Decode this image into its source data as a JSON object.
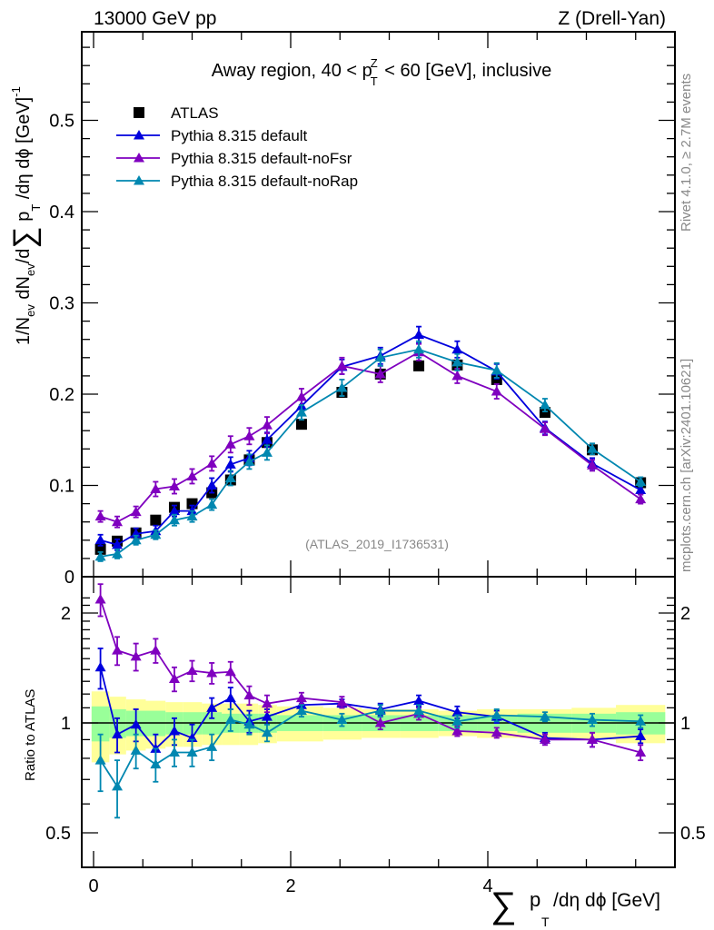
{
  "header": {
    "left": "13000 GeV pp",
    "right": "Z (Drell-Yan)"
  },
  "side_text": {
    "rivet": "Rivet 4.1.0, ≥ 2.7M events",
    "mcplots": "mcplots.cern.ch [arXiv:2401.10621]"
  },
  "chart_data": [
    {
      "type": "scatter",
      "panel": "main",
      "title": "Away region, 40 < p_T^Z < 60 [GeV], inclusive",
      "watermark": "(ATLAS_2019_I1736531)",
      "xlabel": "∑ p_T /dη dϕ [GeV]",
      "ylabel": "1/N_ev dN_ev/d∑ p_T /dη dϕ [GeV]^-1",
      "xlim": [
        -0.05,
        5.9
      ],
      "ylim": [
        0,
        0.6
      ],
      "xticks": [
        "0",
        "2",
        "4"
      ],
      "yticks": [
        "0",
        "0.1",
        "0.2",
        "0.3",
        "0.4",
        "0.5"
      ],
      "legend_position": "top-left",
      "x": [
        0.07,
        0.24,
        0.43,
        0.63,
        0.82,
        1.0,
        1.2,
        1.39,
        1.58,
        1.76,
        2.11,
        2.52,
        2.91,
        3.3,
        3.69,
        4.09,
        4.58,
        5.06,
        5.55
      ],
      "series": [
        {
          "name": "ATLAS",
          "marker": "square",
          "color": "#000000",
          "values": [
            0.03,
            0.039,
            0.048,
            0.062,
            0.076,
            0.08,
            0.092,
            0.106,
            0.128,
            0.147,
            0.167,
            0.202,
            0.222,
            0.231,
            0.232,
            0.216,
            0.18,
            0.139,
            0.103
          ],
          "errors": [
            0.003,
            0.003,
            0.003,
            0.003,
            0.003,
            0.003,
            0.003,
            0.003,
            0.003,
            0.003,
            0.003,
            0.003,
            0.003,
            0.003,
            0.003,
            0.003,
            0.003,
            0.003,
            0.003
          ]
        },
        {
          "name": "Pythia 8.315 default",
          "marker": "triangle",
          "color": "#0000dd",
          "values": [
            0.04,
            0.035,
            0.047,
            0.05,
            0.072,
            0.072,
            0.1,
            0.123,
            0.13,
            0.15,
            0.187,
            0.23,
            0.242,
            0.265,
            0.249,
            0.225,
            0.163,
            0.124,
            0.095
          ],
          "errors": [
            0.006,
            0.006,
            0.006,
            0.006,
            0.006,
            0.006,
            0.008,
            0.008,
            0.008,
            0.008,
            0.008,
            0.008,
            0.009,
            0.009,
            0.009,
            0.008,
            0.007,
            0.006,
            0.005
          ]
        },
        {
          "name": "Pythia 8.315 default-noFsr",
          "marker": "triangle",
          "color": "#7f00bf",
          "values": [
            0.066,
            0.06,
            0.071,
            0.096,
            0.099,
            0.11,
            0.124,
            0.145,
            0.154,
            0.166,
            0.197,
            0.231,
            0.222,
            0.246,
            0.22,
            0.203,
            0.162,
            0.122,
            0.085
          ],
          "errors": [
            0.006,
            0.006,
            0.006,
            0.008,
            0.008,
            0.008,
            0.008,
            0.009,
            0.009,
            0.009,
            0.009,
            0.009,
            0.009,
            0.009,
            0.008,
            0.008,
            0.007,
            0.006,
            0.005
          ]
        },
        {
          "name": "Pythia 8.315 default-noRap",
          "marker": "triangle",
          "color": "#0087b0",
          "values": [
            0.022,
            0.025,
            0.04,
            0.046,
            0.062,
            0.066,
            0.079,
            0.108,
            0.126,
            0.136,
            0.18,
            0.207,
            0.24,
            0.249,
            0.235,
            0.226,
            0.188,
            0.14,
            0.104
          ],
          "errors": [
            0.005,
            0.005,
            0.005,
            0.005,
            0.006,
            0.006,
            0.006,
            0.008,
            0.008,
            0.008,
            0.008,
            0.009,
            0.009,
            0.009,
            0.009,
            0.008,
            0.007,
            0.006,
            0.005
          ]
        }
      ]
    },
    {
      "type": "scatter",
      "panel": "ratio",
      "ylabel": "Ratio to ATLAS",
      "yscale": "log",
      "ylim": [
        0.42,
        2.35
      ],
      "yticks": [
        "0.5",
        "1",
        "2"
      ],
      "x": [
        0.07,
        0.24,
        0.43,
        0.63,
        0.82,
        1.0,
        1.2,
        1.39,
        1.58,
        1.76,
        2.11,
        2.52,
        2.91,
        3.3,
        3.69,
        4.09,
        4.58,
        5.06,
        5.55
      ],
      "bin_edges": [
        -0.02,
        0.16,
        0.33,
        0.53,
        0.73,
        0.91,
        1.1,
        1.3,
        1.48,
        1.67,
        1.86,
        2.33,
        2.72,
        3.11,
        3.5,
        3.89,
        4.3,
        4.85,
        5.3,
        5.8
      ],
      "bands": {
        "inner_color": "#99ff99",
        "outer_color": "#ffff99",
        "inner": [
          0.11,
          0.09,
          0.08,
          0.08,
          0.07,
          0.07,
          0.07,
          0.06,
          0.06,
          0.06,
          0.05,
          0.05,
          0.05,
          0.05,
          0.05,
          0.05,
          0.06,
          0.06,
          0.07
        ],
        "outer": [
          0.22,
          0.18,
          0.16,
          0.15,
          0.14,
          0.14,
          0.13,
          0.13,
          0.13,
          0.12,
          0.11,
          0.1,
          0.09,
          0.09,
          0.08,
          0.09,
          0.09,
          0.1,
          0.12
        ]
      },
      "series": [
        {
          "name": "Pythia 8.315 default",
          "color": "#0000dd",
          "values": [
            1.42,
            0.93,
            0.99,
            0.85,
            0.95,
            0.91,
            1.1,
            1.17,
            1.01,
            1.04,
            1.12,
            1.13,
            1.09,
            1.15,
            1.07,
            1.04,
            0.91,
            0.9,
            0.92
          ],
          "errors": [
            0.18,
            0.1,
            0.1,
            0.08,
            0.08,
            0.08,
            0.07,
            0.08,
            0.07,
            0.05,
            0.04,
            0.03,
            0.04,
            0.04,
            0.04,
            0.04,
            0.03,
            0.04,
            0.04
          ]
        },
        {
          "name": "Pythia 8.315 default-noFsr",
          "color": "#7f00bf",
          "values": [
            2.18,
            1.58,
            1.52,
            1.58,
            1.32,
            1.39,
            1.37,
            1.38,
            1.19,
            1.13,
            1.17,
            1.14,
            1.0,
            1.06,
            0.95,
            0.94,
            0.9,
            0.9,
            0.83
          ],
          "errors": [
            0.22,
            0.14,
            0.13,
            0.12,
            0.1,
            0.09,
            0.09,
            0.09,
            0.07,
            0.06,
            0.04,
            0.04,
            0.04,
            0.04,
            0.03,
            0.03,
            0.03,
            0.04,
            0.04
          ]
        },
        {
          "name": "Pythia 8.315 default-noRap",
          "color": "#0087b0",
          "values": [
            0.79,
            0.67,
            0.84,
            0.77,
            0.83,
            0.83,
            0.86,
            1.02,
            0.99,
            0.94,
            1.08,
            1.02,
            1.08,
            1.08,
            1.01,
            1.05,
            1.04,
            1.02,
            1.01
          ],
          "errors": [
            0.14,
            0.12,
            0.09,
            0.08,
            0.07,
            0.07,
            0.07,
            0.07,
            0.06,
            0.05,
            0.04,
            0.04,
            0.04,
            0.04,
            0.04,
            0.04,
            0.03,
            0.04,
            0.04
          ]
        }
      ]
    }
  ]
}
